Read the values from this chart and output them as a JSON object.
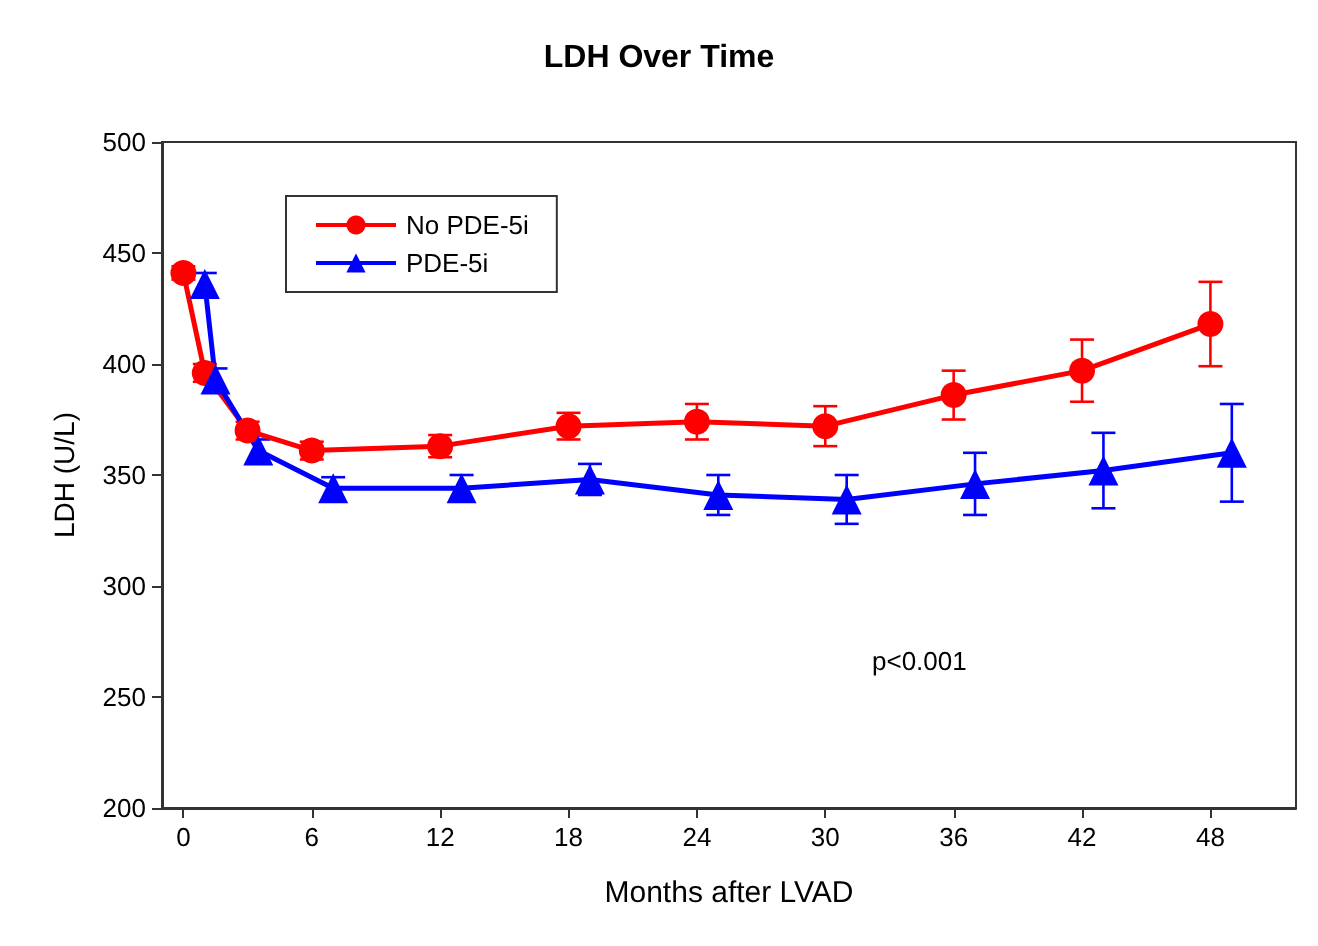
{
  "chart_data": {
    "type": "line",
    "title": "LDH Over Time",
    "xlabel": "Months after LVAD",
    "ylabel": "LDH (U/L)",
    "xlim": [
      -1,
      52
    ],
    "xticks": [
      0,
      6,
      12,
      18,
      24,
      30,
      36,
      42,
      48
    ],
    "ylim": [
      200,
      500
    ],
    "yticks": [
      200,
      250,
      300,
      350,
      400,
      450,
      500
    ],
    "grid": false,
    "legend": "top left",
    "line_style": "solid",
    "series": [
      {
        "name": "No PDE-5i",
        "color": "#ff0000",
        "marker": "circle",
        "x": [
          0,
          1,
          3,
          6,
          12,
          18,
          24,
          30,
          36,
          42,
          48
        ],
        "values": [
          441,
          396,
          370,
          361,
          363,
          372,
          374,
          372,
          386,
          397,
          418
        ],
        "errors": [
          3,
          4,
          4,
          4,
          5,
          6,
          8,
          9,
          11,
          14,
          19
        ]
      },
      {
        "name": "PDE-5i",
        "color": "#0000ff",
        "marker": "triangle",
        "x": [
          1,
          1.5,
          3.5,
          7,
          13,
          19,
          25,
          31,
          37,
          43,
          49
        ],
        "values": [
          436,
          393,
          361,
          344,
          344,
          348,
          341,
          339,
          346,
          352,
          360
        ],
        "errors": [
          5,
          5,
          5,
          5,
          6,
          7,
          9,
          11,
          14,
          17,
          22
        ]
      }
    ],
    "annotations": [
      "p<0.001"
    ]
  }
}
